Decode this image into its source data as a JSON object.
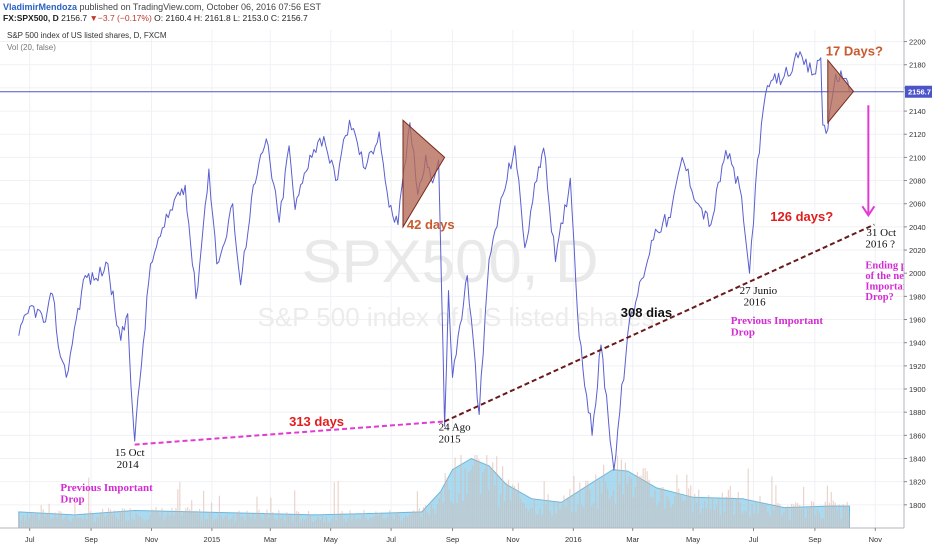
{
  "header": {
    "author": "VladimirMendoza",
    "published": "published on TradingView.com, October 06, 2016 07:56 EST",
    "symbol": "FX:SPX500, D",
    "price": "2156.7",
    "change": "▼−3.7 (−0.17%)",
    "ohlc": "O: 2160.4 H: 2161.8 L: 2153.0 C: 2156.7"
  },
  "subtitle": "S&P 500 index of US listed shares, D, FXCM",
  "vol_label": "Vol (20, false)",
  "watermark": {
    "symbol": "SPX500, D",
    "name": "S&P 500 index of US listed shares"
  },
  "colors": {
    "price_line": "#5a5fd0",
    "current_line": "#4c55c8",
    "volume_fill": "#8ecdea",
    "volume_bar": "#d8b2a4",
    "triangle_fill": "#b36a57",
    "pink_line": "#e23bd3",
    "trend_line": "#6b1a1a",
    "red_text": "#e21d1d",
    "magenta_text": "#d42cd3",
    "orange_text": "#c75a2e"
  },
  "chart_data": {
    "type": "line",
    "title": "S&P 500 index of US listed shares, D, FXCM",
    "x_axis": {
      "ticks": [
        "Jul",
        "Sep",
        "Nov",
        "2015",
        "Mar",
        "May",
        "Jul",
        "Sep",
        "Nov",
        "2016",
        "Mar",
        "May",
        "Jul",
        "Sep",
        "Nov"
      ]
    },
    "y_axis": {
      "range": [
        1780,
        2210
      ],
      "ticks": [
        1800,
        1820,
        1840,
        1860,
        1880,
        1900,
        1920,
        1940,
        1960,
        1980,
        2000,
        2020,
        2040,
        2060,
        2080,
        2100,
        2120,
        2140,
        2160,
        2180,
        2200
      ]
    },
    "current_price": {
      "value": 2156.7,
      "label": "2156.7"
    },
    "series": [
      {
        "kind": "price",
        "points": [
          [
            "2014-06-20",
            1946
          ],
          [
            "2014-07-03",
            1972
          ],
          [
            "2014-07-17",
            1958
          ],
          [
            "2014-07-24",
            1982
          ],
          [
            "2014-08-01",
            1928
          ],
          [
            "2014-08-07",
            1910
          ],
          [
            "2014-08-15",
            1952
          ],
          [
            "2014-08-26",
            1998
          ],
          [
            "2014-09-04",
            1994
          ],
          [
            "2014-09-18",
            2008
          ],
          [
            "2014-09-25",
            1968
          ],
          [
            "2014-10-01",
            1942
          ],
          [
            "2014-10-08",
            1965
          ],
          [
            "2014-10-13",
            1880
          ],
          [
            "2014-10-15",
            1855
          ],
          [
            "2014-10-20",
            1905
          ],
          [
            "2014-10-31",
            2008
          ],
          [
            "2014-11-14",
            2040
          ],
          [
            "2014-11-28",
            2070
          ],
          [
            "2014-12-05",
            2076
          ],
          [
            "2014-12-16",
            1978
          ],
          [
            "2014-12-29",
            2090
          ],
          [
            "2015-01-06",
            2008
          ],
          [
            "2015-01-16",
            2032
          ],
          [
            "2015-01-22",
            2060
          ],
          [
            "2015-01-30",
            1990
          ],
          [
            "2015-02-10",
            2065
          ],
          [
            "2015-02-25",
            2116
          ],
          [
            "2015-03-10",
            2044
          ],
          [
            "2015-03-20",
            2110
          ],
          [
            "2015-03-26",
            2055
          ],
          [
            "2015-04-10",
            2102
          ],
          [
            "2015-04-24",
            2118
          ],
          [
            "2015-05-06",
            2080
          ],
          [
            "2015-05-20",
            2132
          ],
          [
            "2015-06-05",
            2090
          ],
          [
            "2015-06-19",
            2122
          ],
          [
            "2015-06-29",
            2057
          ],
          [
            "2015-07-08",
            2042
          ],
          [
            "2015-07-20",
            2130
          ],
          [
            "2015-07-28",
            2068
          ],
          [
            "2015-08-05",
            2102
          ],
          [
            "2015-08-12",
            2078
          ],
          [
            "2015-08-18",
            2098
          ],
          [
            "2015-08-21",
            1985
          ],
          [
            "2015-08-24",
            1868
          ],
          [
            "2015-08-28",
            1985
          ],
          [
            "2015-09-01",
            1910
          ],
          [
            "2015-09-16",
            1998
          ],
          [
            "2015-09-28",
            1878
          ],
          [
            "2015-10-08",
            2012
          ],
          [
            "2015-10-22",
            2068
          ],
          [
            "2015-11-03",
            2110
          ],
          [
            "2015-11-13",
            2022
          ],
          [
            "2015-11-27",
            2092
          ],
          [
            "2015-12-02",
            2108
          ],
          [
            "2015-12-14",
            2010
          ],
          [
            "2015-12-29",
            2082
          ],
          [
            "2016-01-07",
            1945
          ],
          [
            "2016-01-20",
            1860
          ],
          [
            "2016-01-29",
            1938
          ],
          [
            "2016-02-11",
            1830
          ],
          [
            "2016-02-25",
            1948
          ],
          [
            "2016-03-10",
            1995
          ],
          [
            "2016-03-24",
            2038
          ],
          [
            "2016-04-08",
            2048
          ],
          [
            "2016-04-20",
            2100
          ],
          [
            "2016-05-06",
            2060
          ],
          [
            "2016-05-19",
            2042
          ],
          [
            "2016-06-03",
            2106
          ],
          [
            "2016-06-17",
            2074
          ],
          [
            "2016-06-27",
            2000
          ],
          [
            "2016-07-05",
            2098
          ],
          [
            "2016-07-15",
            2162
          ],
          [
            "2016-08-01",
            2170
          ],
          [
            "2016-08-15",
            2186
          ],
          [
            "2016-08-31",
            2172
          ],
          [
            "2016-09-07",
            2186
          ],
          [
            "2016-09-09",
            2128
          ],
          [
            "2016-09-14",
            2124
          ],
          [
            "2016-09-22",
            2172
          ],
          [
            "2016-09-29",
            2168
          ],
          [
            "2016-10-06",
            2156.7
          ]
        ]
      },
      {
        "kind": "volume",
        "scale": [
          0,
          1
        ],
        "points": [
          [
            "2014-06-20",
            0.22
          ],
          [
            "2014-08-15",
            0.18
          ],
          [
            "2014-10-15",
            0.24
          ],
          [
            "2014-12-15",
            0.22
          ],
          [
            "2015-02-15",
            0.2
          ],
          [
            "2015-04-15",
            0.18
          ],
          [
            "2015-06-15",
            0.2
          ],
          [
            "2015-08-01",
            0.22
          ],
          [
            "2015-08-20",
            0.5
          ],
          [
            "2015-09-01",
            0.8
          ],
          [
            "2015-09-20",
            0.95
          ],
          [
            "2015-10-08",
            0.85
          ],
          [
            "2015-10-25",
            0.6
          ],
          [
            "2015-11-20",
            0.4
          ],
          [
            "2015-12-20",
            0.35
          ],
          [
            "2016-01-20",
            0.62
          ],
          [
            "2016-02-10",
            0.8
          ],
          [
            "2016-02-25",
            0.78
          ],
          [
            "2016-03-25",
            0.55
          ],
          [
            "2016-05-01",
            0.42
          ],
          [
            "2016-06-20",
            0.4
          ],
          [
            "2016-08-01",
            0.28
          ],
          [
            "2016-09-15",
            0.3
          ],
          [
            "2016-10-06",
            0.3
          ]
        ]
      }
    ],
    "trendlines": [
      {
        "from": [
          "2014-10-15",
          1852
        ],
        "to": [
          "2015-08-24",
          1872
        ],
        "style": "dashed",
        "color": "#e23bd3"
      },
      {
        "from": [
          "2015-08-24",
          1872
        ],
        "to": [
          "2016-10-31",
          2042
        ],
        "style": "dashed",
        "color": "#6b1a1a"
      }
    ],
    "triangles": [
      {
        "points": [
          [
            "2015-07-13",
            2132
          ],
          [
            "2015-07-13",
            2040
          ],
          [
            "2015-08-24",
            2100
          ]
        ]
      },
      {
        "points": [
          [
            "2016-09-14",
            2184
          ],
          [
            "2016-09-14",
            2130
          ],
          [
            "2016-10-10",
            2157
          ]
        ]
      }
    ],
    "arrow": {
      "from": [
        "2016-10-25",
        2145
      ],
      "to": [
        "2016-10-25",
        2050
      ]
    },
    "annotations": [
      {
        "key": "d313",
        "text": "313 days",
        "at": [
          "2015-03-20",
          1868
        ],
        "color": "#e21d1d",
        "size": 13,
        "bold": true
      },
      {
        "key": "d42",
        "text": "42 days",
        "at": [
          "2015-07-17",
          2038
        ],
        "color": "#c75a2e",
        "size": 13,
        "bold": true
      },
      {
        "key": "d308",
        "text": "308 dias",
        "at": [
          "2016-02-18",
          1962
        ],
        "color": "#111111",
        "size": 13,
        "bold": true
      },
      {
        "key": "d126",
        "text": "126 days?",
        "at": [
          "2016-07-18",
          2045
        ],
        "color": "#e21d1d",
        "size": 13,
        "bold": true
      },
      {
        "key": "d17",
        "text": "17 Days?",
        "at": [
          "2016-09-12",
          2188
        ],
        "color": "#c75a2e",
        "size": 13,
        "bold": true
      },
      {
        "key": "oct14a",
        "text": "15 Oct",
        "at": [
          "2014-09-25",
          1842
        ],
        "color": "#111111",
        "size": 11,
        "serif": true
      },
      {
        "key": "oct14b",
        "text": "2014",
        "at": [
          "2014-09-27",
          1832
        ],
        "color": "#111111",
        "size": 11,
        "serif": true
      },
      {
        "key": "ago15a",
        "text": "24 Ago",
        "at": [
          "2015-08-18",
          1864
        ],
        "color": "#111111",
        "size": 11,
        "serif": true
      },
      {
        "key": "ago15b",
        "text": "2015",
        "at": [
          "2015-08-18",
          1854
        ],
        "color": "#111111",
        "size": 11,
        "serif": true
      },
      {
        "key": "jun16a",
        "text": "27 Junio",
        "at": [
          "2016-06-17",
          1982
        ],
        "color": "#111111",
        "size": 11,
        "serif": true
      },
      {
        "key": "jun16b",
        "text": "2016",
        "at": [
          "2016-06-21",
          1972
        ],
        "color": "#111111",
        "size": 11,
        "serif": true
      },
      {
        "key": "oct16a",
        "text": "31 Oct",
        "at": [
          "2016-10-23",
          2032
        ],
        "color": "#111111",
        "size": 11,
        "serif": true
      },
      {
        "key": "oct16b",
        "text": "2016 ?",
        "at": [
          "2016-10-22",
          2022
        ],
        "color": "#111111",
        "size": 11,
        "serif": true
      },
      {
        "key": "pid1a",
        "text": "Previous Important",
        "at": [
          "2014-08-01",
          1812
        ],
        "color": "#d42cd3",
        "size": 11,
        "bold": true,
        "serif": true
      },
      {
        "key": "pid1b",
        "text": "Drop",
        "at": [
          "2014-08-01",
          1802
        ],
        "color": "#d42cd3",
        "size": 11,
        "bold": true,
        "serif": true
      },
      {
        "key": "pid2a",
        "text": "Previous Important",
        "at": [
          "2016-06-08",
          1956
        ],
        "color": "#d42cd3",
        "size": 11,
        "bold": true,
        "serif": true
      },
      {
        "key": "pid2b",
        "text": "Drop",
        "at": [
          "2016-06-08",
          1946
        ],
        "color": "#d42cd3",
        "size": 11,
        "bold": true,
        "serif": true
      },
      {
        "key": "end1",
        "text": "Ending point",
        "at": [
          "2016-10-22",
          2004
        ],
        "color": "#d42cd3",
        "size": 10.5,
        "bold": true,
        "serif": true
      },
      {
        "key": "end2",
        "text": "of the next",
        "at": [
          "2016-10-22",
          1995
        ],
        "color": "#d42cd3",
        "size": 10.5,
        "bold": true,
        "serif": true
      },
      {
        "key": "end3",
        "text": "Important",
        "at": [
          "2016-10-22",
          1986
        ],
        "color": "#d42cd3",
        "size": 10.5,
        "bold": true,
        "serif": true
      },
      {
        "key": "end4",
        "text": "Drop?",
        "at": [
          "2016-10-22",
          1977
        ],
        "color": "#d42cd3",
        "size": 10.5,
        "bold": true,
        "serif": true
      }
    ]
  }
}
